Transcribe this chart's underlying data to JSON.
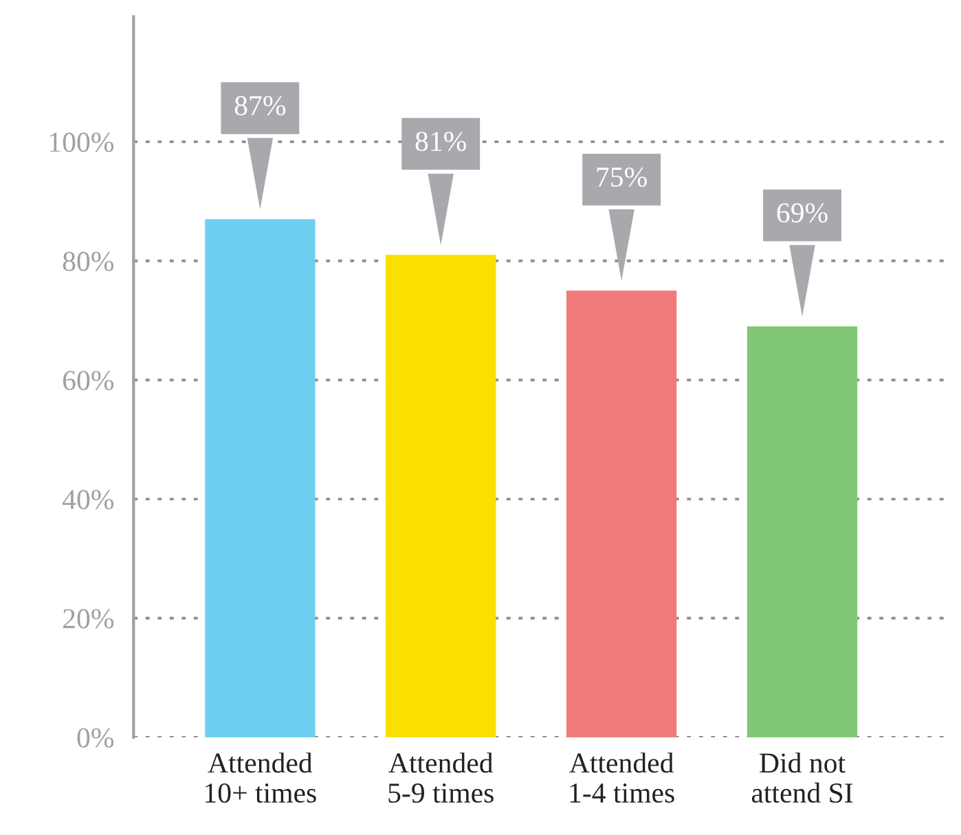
{
  "chart_data": {
    "type": "bar",
    "categories": [
      "Attended\n10+ times",
      "Attended\n5-9 times",
      "Attended\n1-4 times",
      "Did not\nattend SI"
    ],
    "values": [
      87,
      81,
      75,
      69
    ],
    "colors": [
      "#6ecff0",
      "#f9e000",
      "#f07a7a",
      "#80c875"
    ],
    "value_labels": [
      "87%",
      "81%",
      "75%",
      "69%"
    ],
    "ylim": [
      0,
      121
    ],
    "yticks": [
      {
        "value": 0,
        "label": "0%"
      },
      {
        "value": 20,
        "label": "20%"
      },
      {
        "value": 40,
        "label": "40%"
      },
      {
        "value": 60,
        "label": "60%"
      },
      {
        "value": 80,
        "label": "80%"
      },
      {
        "value": 100,
        "label": "100%"
      }
    ],
    "grid": "y",
    "legend": false
  }
}
